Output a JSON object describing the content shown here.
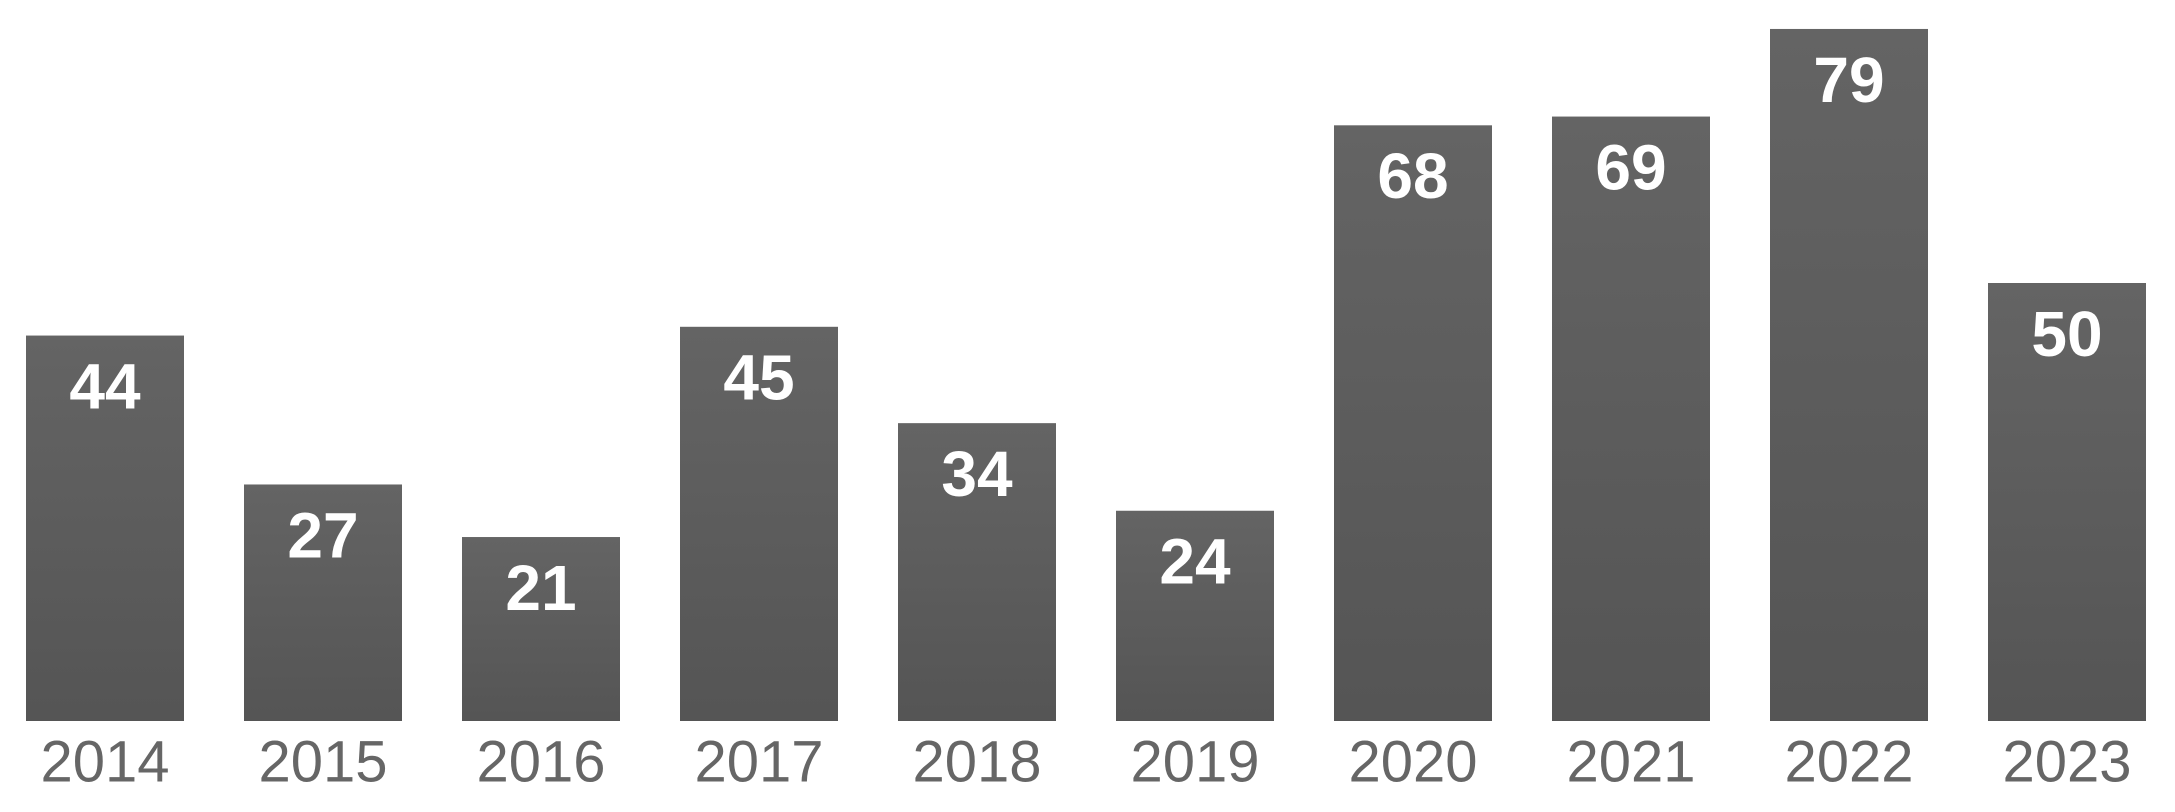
{
  "chart_data": {
    "type": "bar",
    "categories": [
      "2014",
      "2015",
      "2016",
      "2017",
      "2018",
      "2019",
      "2020",
      "2021",
      "2022",
      "2023"
    ],
    "values": [
      44,
      27,
      21,
      45,
      34,
      24,
      68,
      69,
      79,
      50
    ],
    "color": "#5a5a5a"
  }
}
